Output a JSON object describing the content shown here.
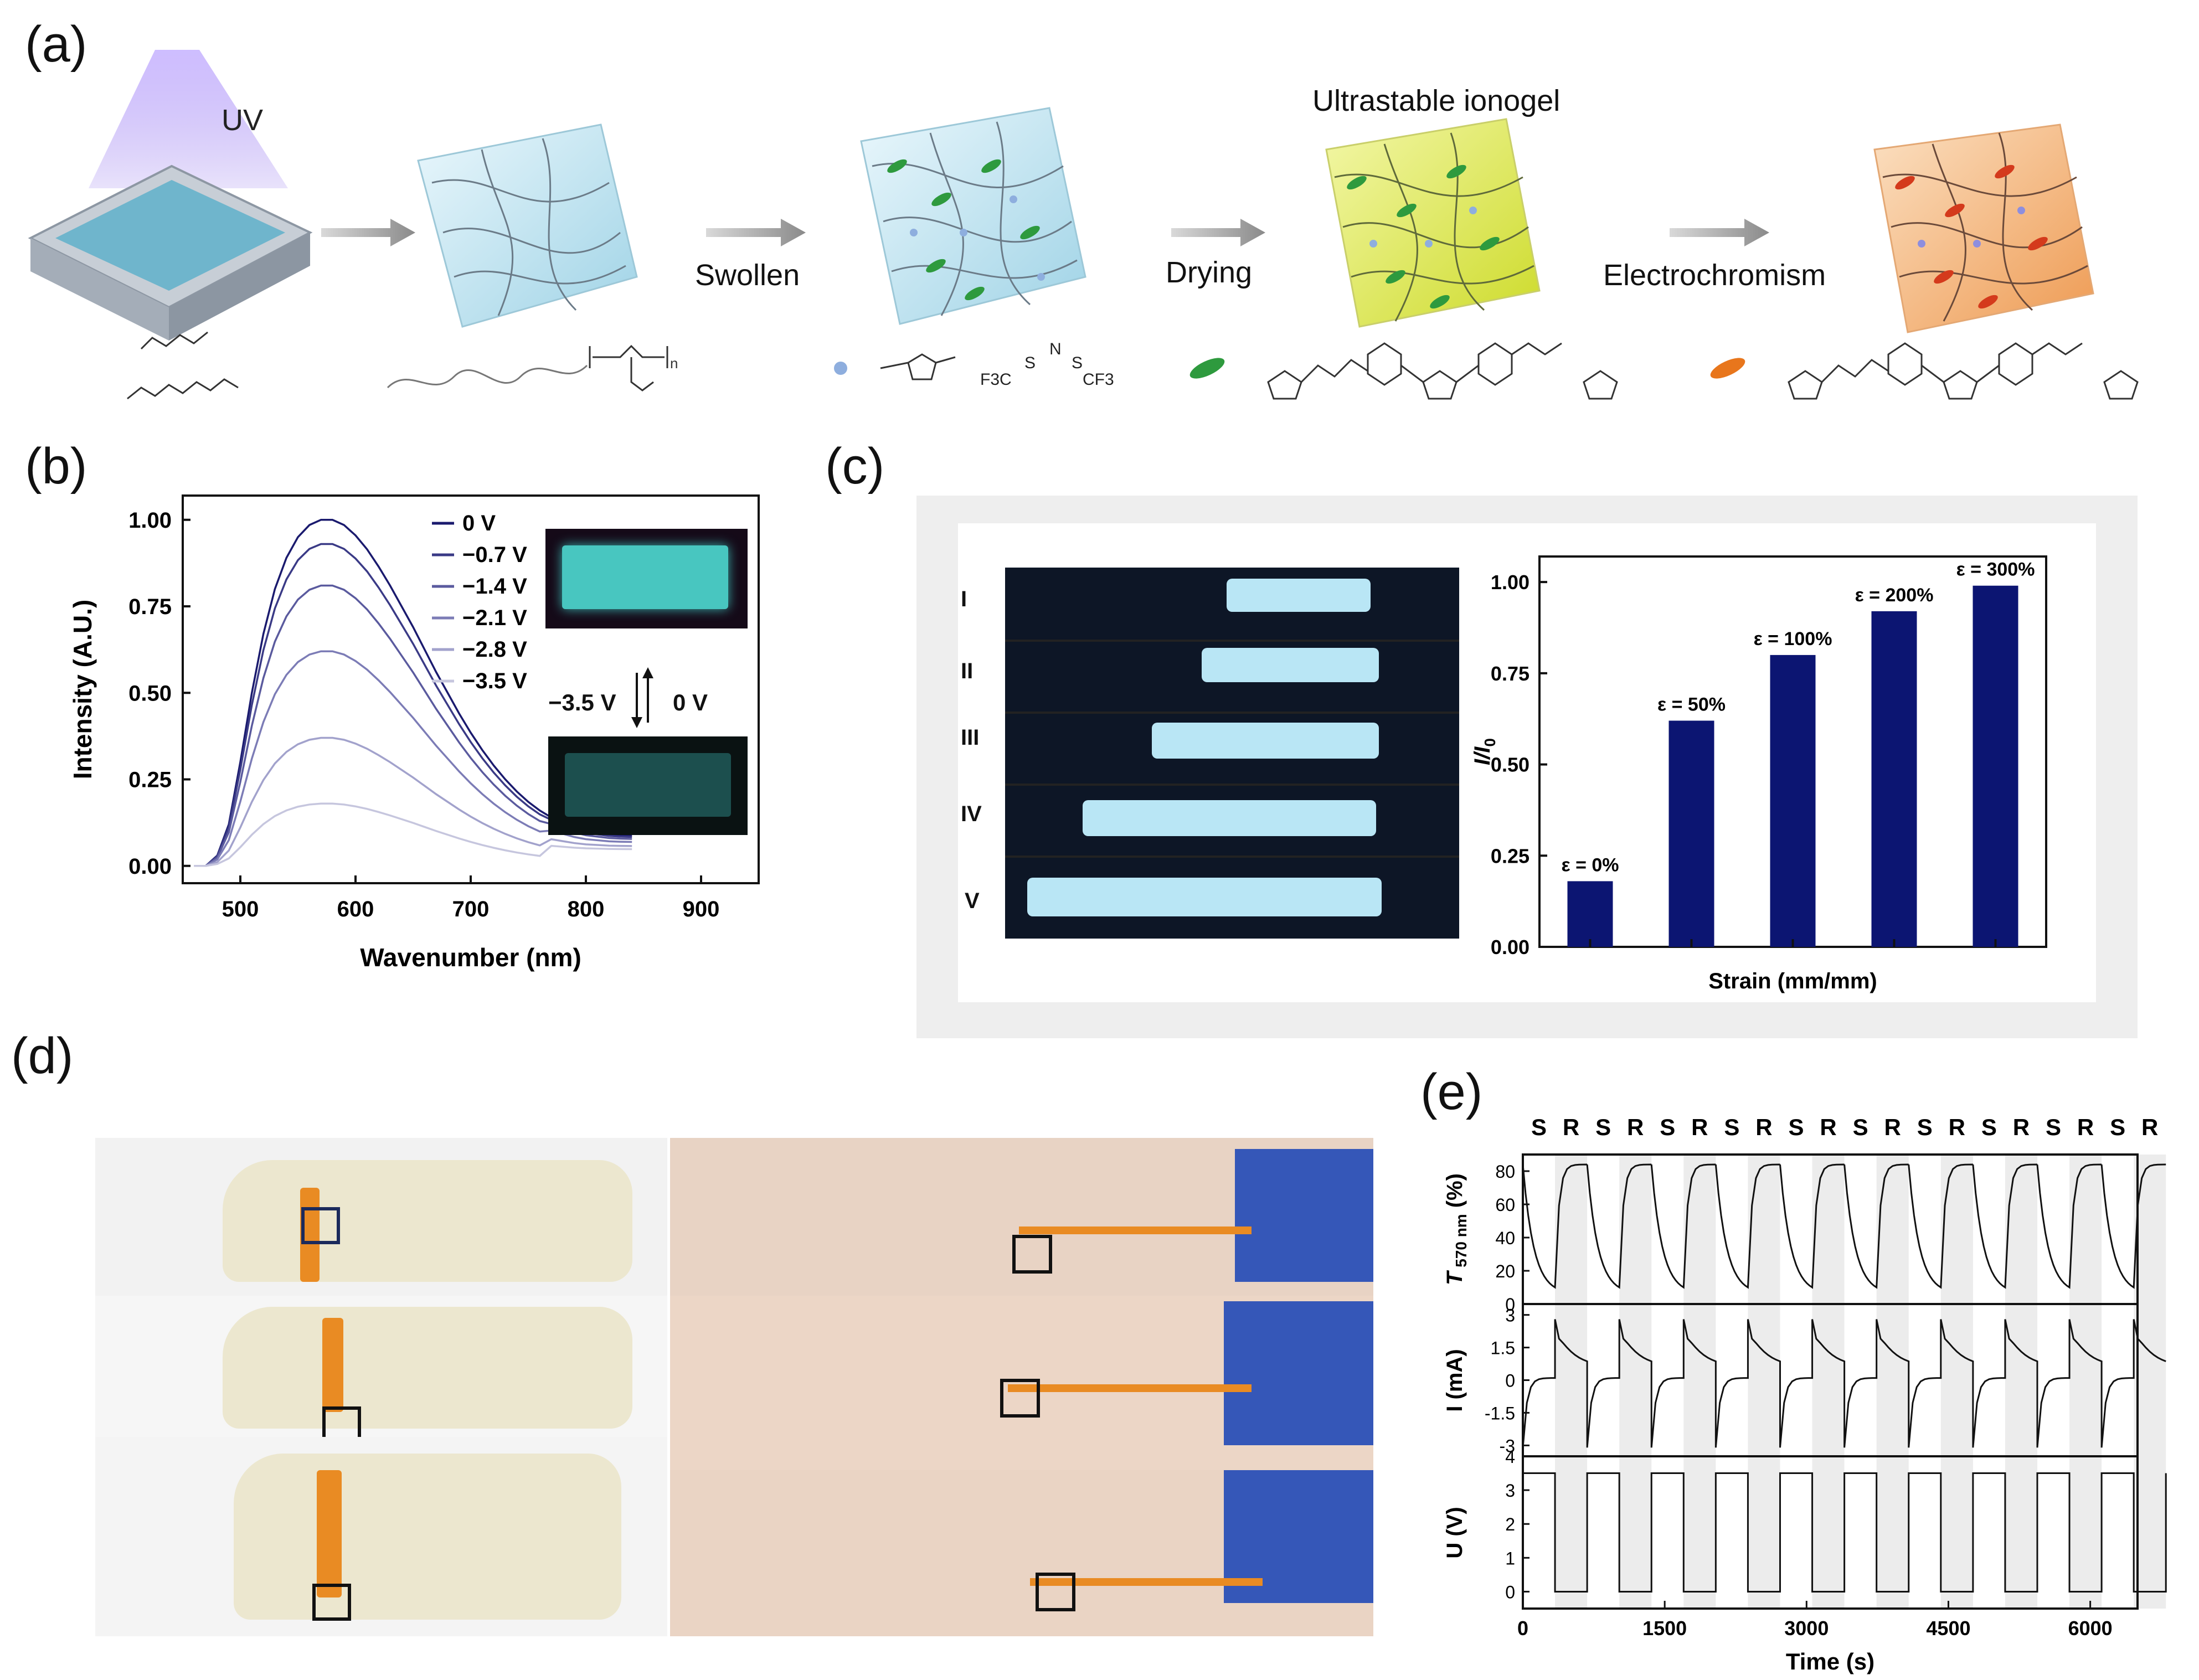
{
  "panel_labels": {
    "a": "(a)",
    "b": "(b)",
    "c": "(c)",
    "d": "(d)",
    "e": "(e)"
  },
  "panel_a": {
    "uv_label": "UV",
    "step_labels": [
      "Swollen",
      "Drying",
      "Electrochromism"
    ],
    "ionogel_label": "Ultrastable ionogel",
    "polymer_repeat": "n",
    "il_labels": [
      "F3C",
      "S",
      "N",
      "S",
      "CF3"
    ]
  },
  "panel_b": {
    "voltage_labels": [
      "−3.5 V",
      "0 V"
    ],
    "chart_data": {
      "type": "line",
      "xlabel": "Wavenumber (nm)",
      "ylabel": "Intensity (A.U.)",
      "xlim": [
        450,
        950
      ],
      "ylim": [
        -0.05,
        1.07
      ],
      "xticks": [
        500,
        600,
        700,
        800,
        900
      ],
      "yticks": [
        0.0,
        0.25,
        0.5,
        0.75,
        1.0
      ],
      "ytick_labels": [
        "0.00",
        "0.25",
        "0.50",
        "0.75",
        "1.00"
      ],
      "legend_placement": "top-right",
      "x": [
        460,
        470,
        480,
        490,
        500,
        510,
        520,
        530,
        540,
        550,
        560,
        570,
        580,
        590,
        600,
        610,
        620,
        630,
        640,
        650,
        660,
        670,
        680,
        690,
        700,
        710,
        720,
        730,
        740,
        750,
        760,
        770,
        780,
        790,
        800,
        810,
        820,
        830,
        840
      ],
      "shape": [
        0.0,
        0.0,
        0.03,
        0.12,
        0.3,
        0.5,
        0.67,
        0.8,
        0.89,
        0.95,
        0.985,
        1.0,
        1.0,
        0.985,
        0.955,
        0.915,
        0.865,
        0.81,
        0.75,
        0.69,
        0.625,
        0.56,
        0.5,
        0.44,
        0.385,
        0.335,
        0.29,
        0.25,
        0.215,
        0.185,
        0.16,
        0.14,
        0.125,
        0.11,
        0.1,
        0.095,
        0.09,
        0.088,
        0.087
      ],
      "series": [
        {
          "name": "0 V",
          "peak": 1.0,
          "color": "#1a1a6e"
        },
        {
          "name": "−0.7 V",
          "peak": 0.93,
          "color": "#3a3a86"
        },
        {
          "name": "−1.4 V",
          "peak": 0.81,
          "color": "#5a5a9e"
        },
        {
          "name": "−2.1 V",
          "peak": 0.62,
          "color": "#7c7cb6"
        },
        {
          "name": "−2.8 V",
          "peak": 0.37,
          "color": "#a2a2cc"
        },
        {
          "name": "−3.5 V",
          "peak": 0.18,
          "color": "#c6c6de"
        }
      ]
    }
  },
  "panel_c": {
    "row_labels": [
      "I",
      "II",
      "III",
      "IV",
      "V"
    ],
    "chart_data": {
      "type": "bar",
      "categories": [
        "ε = 0%",
        "ε = 50%",
        "ε = 100%",
        "ε = 200%",
        "ε = 300%"
      ],
      "values": [
        0.18,
        0.62,
        0.8,
        0.92,
        0.99
      ],
      "xlabel": "Strain (mm/mm)",
      "ylabel": "I/I0",
      "ylabel_main": "I/I",
      "ylabel_sub": "0",
      "ylim": [
        0,
        1.07
      ],
      "yticks": [
        0.0,
        0.25,
        0.5,
        0.75,
        1.0
      ],
      "ytick_labels": [
        "0.00",
        "0.25",
        "0.50",
        "0.75",
        "1.00"
      ],
      "bar_color": "#0c1572"
    }
  },
  "panel_e": {
    "state_labels": [
      "S",
      "R",
      "S",
      "R",
      "S",
      "R",
      "S",
      "R",
      "S",
      "R",
      "S",
      "R",
      "S",
      "R",
      "S",
      "R",
      "S",
      "R",
      "S",
      "R"
    ],
    "chart_data": {
      "type": "line",
      "xlabel": "Time (s)",
      "xlim": [
        0,
        6500
      ],
      "xticks": [
        0,
        1500,
        3000,
        4500,
        6000
      ],
      "period_s": 680,
      "cycles": 10,
      "transmittance": {
        "ylabel": "T 570 nm (%)",
        "ylabel_main": "T",
        "ylabel_sub": "570 nm",
        "ylabel_unit": "(%)",
        "ylim": [
          0,
          90
        ],
        "yticks": [
          0,
          20,
          40,
          60,
          80
        ],
        "max": 84,
        "min": 10
      },
      "current": {
        "ylabel": "I (mA)",
        "ylim": [
          -3.5,
          3.5
        ],
        "yticks": [
          -3,
          -1.5,
          0,
          1.5,
          3
        ],
        "ytick_labels": [
          "-3",
          "-1.5",
          "0",
          "1.5",
          "3"
        ],
        "plateau_high": 0.6,
        "plateau_low": 0.1
      },
      "voltage": {
        "ylabel": "U (V)",
        "ylim": [
          -0.5,
          4
        ],
        "yticks": [
          0,
          1,
          2,
          3,
          4
        ],
        "high": 3.5,
        "low": 0
      }
    }
  }
}
